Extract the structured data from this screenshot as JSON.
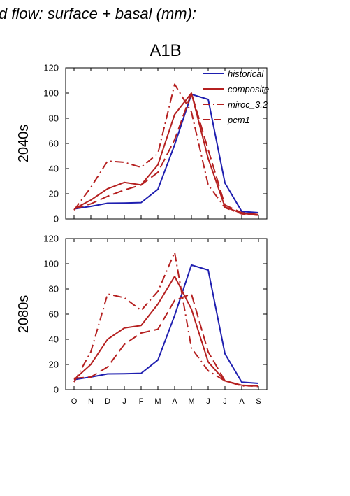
{
  "figure": {
    "title": "d flow: surface + basal (mm):",
    "subtitle": "A1B"
  },
  "colors": {
    "historical": "#1f1fb0",
    "scenario": "#b52020"
  },
  "chart_data": [
    {
      "type": "line",
      "panel_label": "2040s",
      "categories": [
        "O",
        "N",
        "D",
        "J",
        "F",
        "M",
        "A",
        "M",
        "J",
        "J",
        "A",
        "S"
      ],
      "ylim": [
        0,
        120
      ],
      "yticks": [
        0,
        20,
        40,
        60,
        80,
        100,
        120
      ],
      "series": [
        {
          "name": "historical",
          "style": "solid",
          "color": "#1f1fb0",
          "values": [
            8,
            10,
            12.5,
            12.6,
            13,
            23.5,
            59,
            99,
            95,
            28.5,
            6,
            5
          ]
        },
        {
          "name": "composite",
          "style": "solid",
          "color": "#b52020",
          "values": [
            8,
            15,
            24,
            29,
            27,
            43,
            83,
            100,
            48,
            9.5,
            4.5,
            3
          ]
        },
        {
          "name": "miroc_3.2",
          "style": "dashdot",
          "color": "#b52020",
          "values": [
            7,
            25,
            46,
            45,
            41,
            52,
            107,
            85,
            27,
            9,
            4,
            3
          ]
        },
        {
          "name": "pcm1",
          "style": "dashed",
          "color": "#b52020",
          "values": [
            8,
            12,
            18,
            23,
            27,
            37,
            63,
            100,
            55,
            11,
            5,
            3.5
          ]
        }
      ],
      "legend": {
        "position": "top-right",
        "entries": [
          "historical",
          "composite",
          "miroc_3.2",
          "pcm1"
        ]
      }
    },
    {
      "type": "line",
      "panel_label": "2080s",
      "categories": [
        "O",
        "N",
        "D",
        "J",
        "F",
        "M",
        "A",
        "M",
        "J",
        "J",
        "A",
        "S"
      ],
      "ylim": [
        0,
        120
      ],
      "yticks": [
        0,
        20,
        40,
        60,
        80,
        100,
        120
      ],
      "series": [
        {
          "name": "historical",
          "style": "solid",
          "color": "#1f1fb0",
          "values": [
            8,
            10,
            12.5,
            12.6,
            13,
            23.5,
            59,
            99,
            95,
            28.5,
            6,
            5
          ]
        },
        {
          "name": "composite",
          "style": "solid",
          "color": "#b52020",
          "values": [
            8,
            20,
            40,
            49,
            51,
            68,
            90,
            64,
            22,
            7,
            3.5,
            3
          ]
        },
        {
          "name": "miroc_3.2",
          "style": "dashdot",
          "color": "#b52020",
          "values": [
            6,
            30,
            76,
            73,
            63,
            78,
            109,
            33,
            15,
            7,
            3,
            3
          ]
        },
        {
          "name": "pcm1",
          "style": "dashed",
          "color": "#b52020",
          "values": [
            9,
            10,
            18,
            36,
            45,
            48,
            71,
            76,
            30,
            7,
            3.5,
            2.5
          ]
        }
      ]
    }
  ]
}
